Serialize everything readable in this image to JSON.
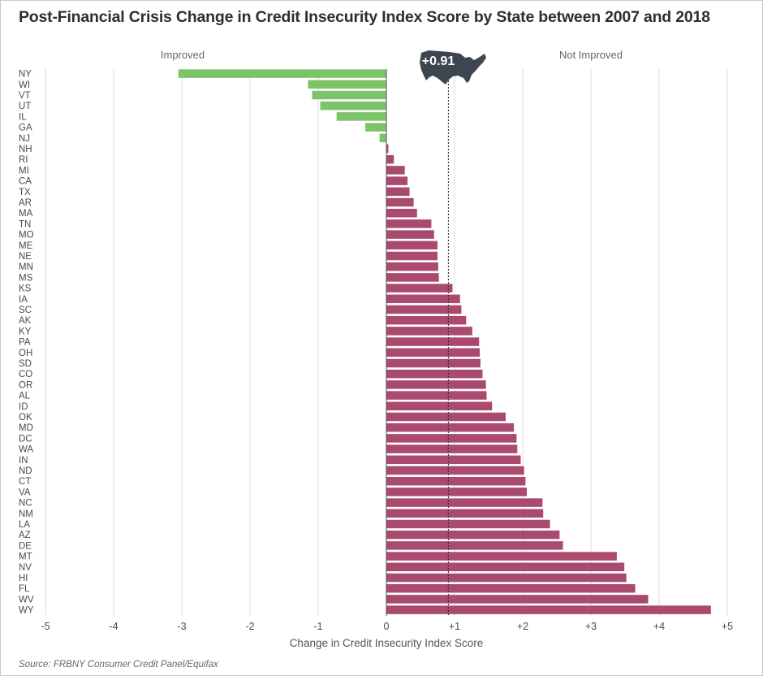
{
  "title": "Post-Financial Crisis Change in Credit Insecurity Index Score by State between 2007 and 2018",
  "source": "Source: FRBNY Consumer Credit Panel/Equifax",
  "chart_data": {
    "type": "bar",
    "orientation": "horizontal",
    "title": "Post-Financial Crisis Change in Credit Insecurity Index Score by State between 2007 and 2018",
    "xlabel": "Change in Credit Insecurity Index Score",
    "ylabel": "",
    "xlim": [
      -5,
      5
    ],
    "xticks": [
      {
        "value": -5,
        "label": "-5"
      },
      {
        "value": -4,
        "label": "-4"
      },
      {
        "value": -3,
        "label": "-3"
      },
      {
        "value": -2,
        "label": "-2"
      },
      {
        "value": -1,
        "label": "-1"
      },
      {
        "value": 0,
        "label": "0"
      },
      {
        "value": 1,
        "label": "+1"
      },
      {
        "value": 2,
        "label": "+2"
      },
      {
        "value": 3,
        "label": "+3"
      },
      {
        "value": 4,
        "label": "+4"
      },
      {
        "value": 5,
        "label": "+5"
      }
    ],
    "grid": true,
    "region_labels": {
      "negative": "Improved",
      "positive": "Not Improved"
    },
    "reference": {
      "value": 0.91,
      "label": "+0.91",
      "icon": "us-map-icon"
    },
    "colors": {
      "improved": "#7cc36a",
      "not_improved": "#a94a6e",
      "reference_badge": "#3d4551"
    },
    "categories": [
      "NY",
      "WI",
      "VT",
      "UT",
      "IL",
      "GA",
      "NJ",
      "NH",
      "RI",
      "MI",
      "CA",
      "TX",
      "AR",
      "MA",
      "TN",
      "MO",
      "ME",
      "NE",
      "MN",
      "MS",
      "KS",
      "IA",
      "SC",
      "AK",
      "KY",
      "PA",
      "OH",
      "SD",
      "CO",
      "OR",
      "AL",
      "ID",
      "OK",
      "MD",
      "DC",
      "WA",
      "IN",
      "ND",
      "CT",
      "VA",
      "NC",
      "NM",
      "LA",
      "AZ",
      "DE",
      "MT",
      "NV",
      "HI",
      "FL",
      "WV",
      "WY"
    ],
    "values": [
      -3.05,
      -1.15,
      -1.09,
      -0.97,
      -0.73,
      -0.31,
      -0.1,
      0.03,
      0.11,
      0.27,
      0.31,
      0.34,
      0.4,
      0.45,
      0.66,
      0.7,
      0.75,
      0.75,
      0.76,
      0.77,
      0.97,
      1.08,
      1.1,
      1.17,
      1.26,
      1.36,
      1.37,
      1.38,
      1.41,
      1.46,
      1.47,
      1.55,
      1.75,
      1.87,
      1.91,
      1.92,
      1.97,
      2.02,
      2.04,
      2.06,
      2.29,
      2.3,
      2.4,
      2.54,
      2.59,
      3.38,
      3.49,
      3.52,
      3.65,
      3.84,
      4.76
    ]
  }
}
